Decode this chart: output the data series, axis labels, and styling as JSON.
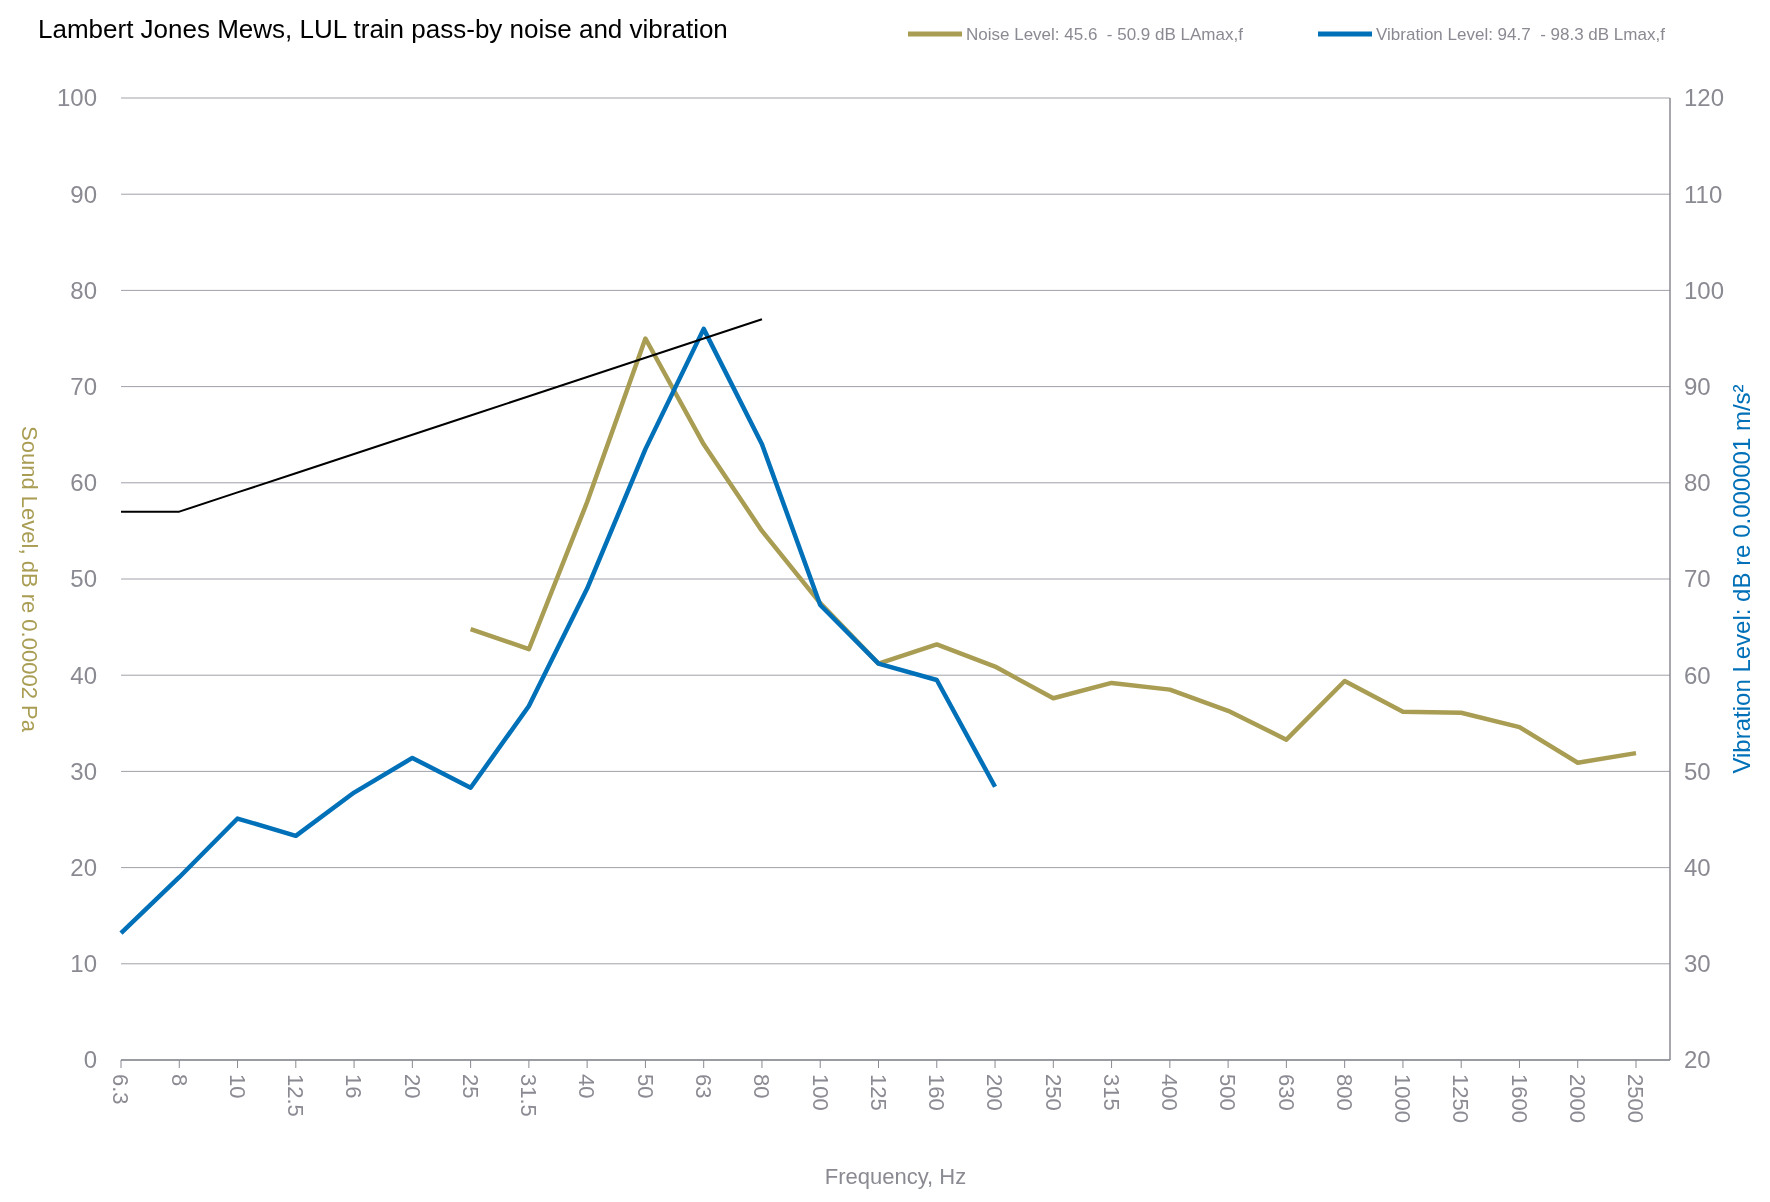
{
  "chart_data": {
    "type": "line",
    "title": "Lambert Jones Mews, LUL train pass-by noise and vibration",
    "xlabel": "Frequency, Hz",
    "ylabel": "Sound Level, dB re 0.00002 Pa",
    "y2label": "Vibration Level: dB re 0.000001 m/s²",
    "categories": [
      "6.3",
      "8",
      "10",
      "12.5",
      "16",
      "20",
      "25",
      "31.5",
      "40",
      "50",
      "63",
      "80",
      "100",
      "125",
      "160",
      "200",
      "250",
      "315",
      "400",
      "500",
      "630",
      "800",
      "1000",
      "1250",
      "1600",
      "2000",
      "2500"
    ],
    "series": [
      {
        "name": "Noise Level: 45.6  - 50.9 dB LAmax,f",
        "color": "#a99d53",
        "values": [
          null,
          null,
          null,
          null,
          null,
          null,
          44.8,
          42.7,
          58,
          75,
          64,
          55,
          47.5,
          41.2,
          43.2,
          40.9,
          37.6,
          39.2,
          38.5,
          36.3,
          33.3,
          39.4,
          36.2,
          36.1,
          34.6,
          30.9,
          31.9
        ]
      },
      {
        "name": "Vibration Level: 94.7  - 98.3 dB Lmax,f",
        "color": "#0070b8",
        "axis": "y2",
        "values": [
          33.2,
          39,
          45.1,
          43.3,
          47.8,
          51.4,
          48.3,
          56.8,
          69,
          83.5,
          96,
          84,
          67.3,
          61.2,
          59.5,
          48.4,
          null,
          null,
          null,
          null,
          null,
          null,
          null,
          null,
          null,
          null,
          null
        ]
      },
      {
        "color": "#000000",
        "values": [
          57,
          57,
          59,
          61,
          63,
          65,
          67,
          69,
          71,
          73,
          75,
          77,
          null,
          null,
          null,
          null,
          null,
          null,
          null,
          null,
          null,
          null,
          null,
          null,
          null,
          null,
          null
        ]
      }
    ],
    "ylim": [
      0,
      100
    ],
    "yticks": [
      0,
      10,
      20,
      30,
      40,
      50,
      60,
      70,
      80,
      90,
      100
    ],
    "y2lim": [
      20,
      120
    ],
    "y2ticks": [
      20,
      30,
      40,
      50,
      60,
      70,
      80,
      90,
      100,
      110,
      120
    ],
    "grid": "y",
    "legend": "top right",
    "marker": "none",
    "line_style": "solid"
  }
}
